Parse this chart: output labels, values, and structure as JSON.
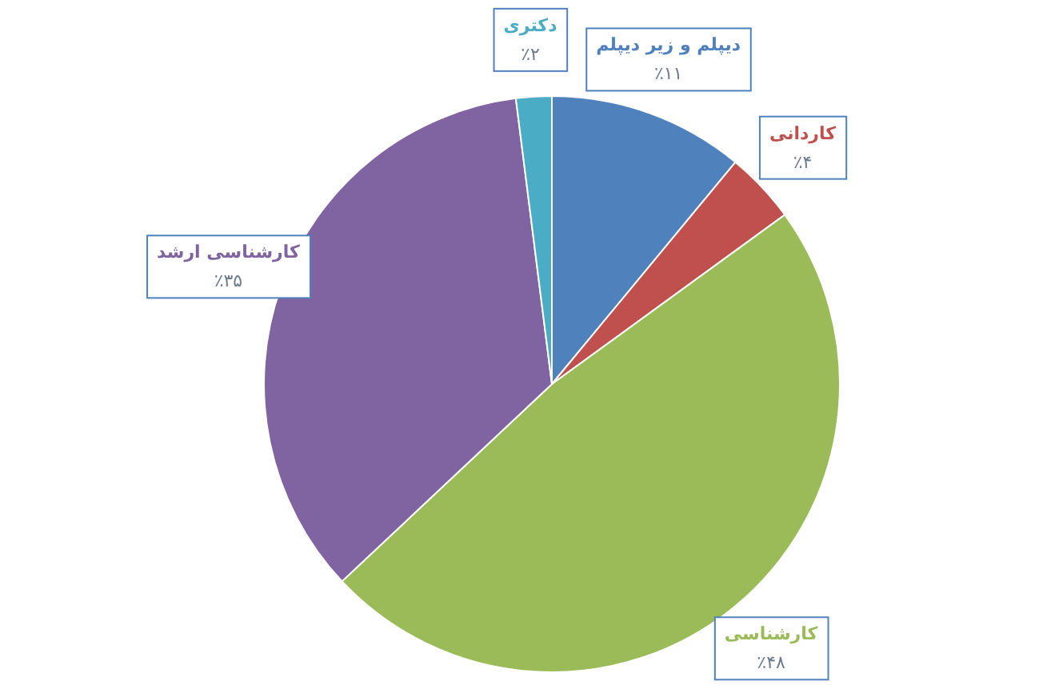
{
  "chart_data": {
    "type": "pie",
    "categories": [
      "دیپلم و زیر دیپلم",
      "کاردانی",
      "کارشناسی",
      "کارشناسی ارشد",
      "دکتری"
    ],
    "values": [
      11,
      4,
      48,
      35,
      2
    ],
    "colors": [
      "#4f81bd",
      "#c0504d",
      "#9bbb59",
      "#8064a2",
      "#4bacc6"
    ],
    "value_labels": [
      "٪۱۱",
      "٪۴",
      "٪۴۸",
      "٪۳۵",
      "٪۲"
    ]
  }
}
